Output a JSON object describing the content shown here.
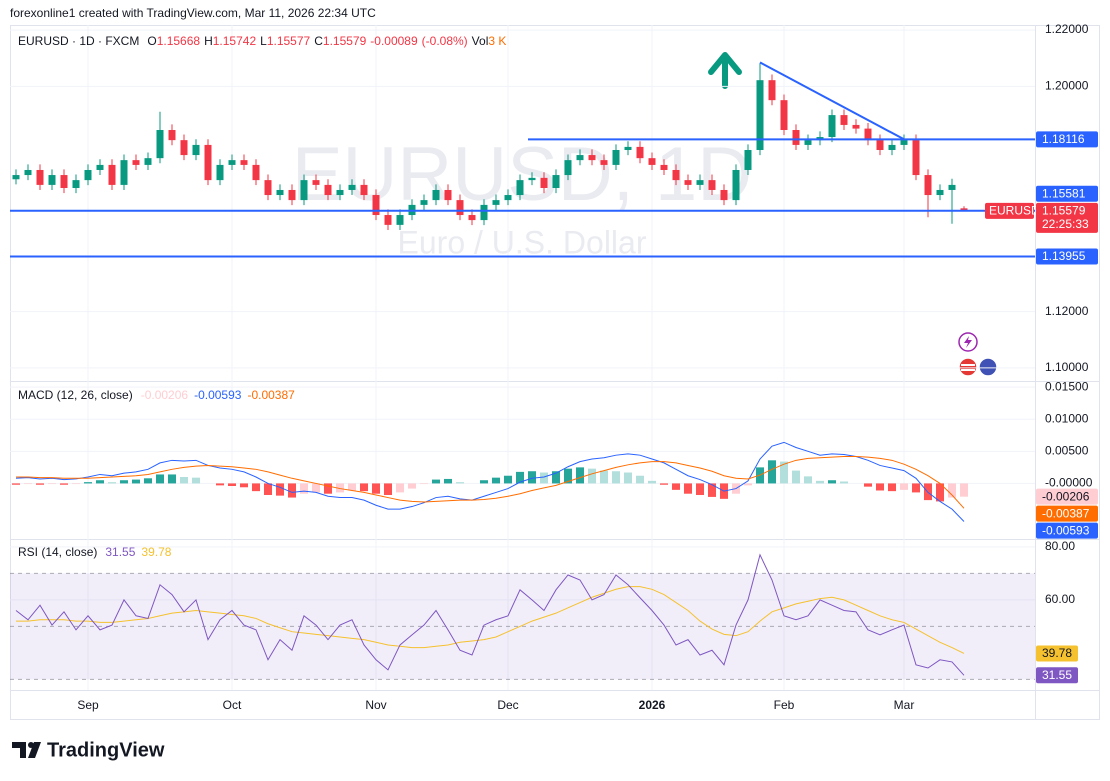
{
  "header": {
    "attribution": "forexonline1 created with TradingView.com, Mar 11, 2026 22:34 UTC"
  },
  "brand": "TradingView",
  "chart_data": [
    {
      "type": "candlestick",
      "symbol": "EURUSD · 1D · FXCM",
      "ohlc_letters": [
        "O",
        "H",
        "L",
        "C"
      ],
      "change": -0.00089,
      "change_label": "(-0.08%)",
      "volume_title": "Vol",
      "volume_label": "3 K",
      "watermark": "EURUSD, 1D",
      "watermark_sub": "Euro / U.S. Dollar",
      "symbol_badge": "EURUSD",
      "countdown": "22:25:33",
      "up_color": "#089981",
      "down_color": "#f23645",
      "hline_color": "#2962ff",
      "categories": [
        null,
        null,
        null,
        null,
        null,
        null,
        "Sep",
        null,
        null,
        null,
        null,
        null,
        null,
        null,
        null,
        null,
        null,
        null,
        "Oct",
        null,
        null,
        null,
        null,
        null,
        null,
        null,
        null,
        null,
        null,
        null,
        "Nov",
        null,
        null,
        null,
        null,
        null,
        null,
        null,
        null,
        null,
        null,
        "Dec",
        null,
        null,
        null,
        null,
        null,
        null,
        null,
        null,
        null,
        null,
        null,
        "2026",
        null,
        null,
        null,
        null,
        null,
        null,
        null,
        null,
        null,
        null,
        "Feb",
        null,
        null,
        null,
        null,
        null,
        null,
        null,
        null,
        null,
        "Mar",
        null,
        null,
        null,
        null,
        null
      ],
      "open": [
        1.167,
        1.1685,
        1.1703,
        1.165,
        1.1685,
        1.1639,
        1.1667,
        1.1703,
        1.1721,
        1.165,
        1.1738,
        1.1721,
        1.1745,
        1.1845,
        1.1809,
        1.1756,
        1.1792,
        1.1667,
        1.1721,
        1.1738,
        1.1721,
        1.1667,
        1.1614,
        1.1632,
        1.1596,
        1.1667,
        1.165,
        1.1614,
        1.1632,
        1.165,
        1.1614,
        1.1543,
        1.1508,
        1.1543,
        1.1579,
        1.1596,
        1.1632,
        1.1596,
        1.1543,
        1.1525,
        1.1579,
        1.1596,
        1.1614,
        1.1667,
        1.1675,
        1.1639,
        1.1685,
        1.1738,
        1.1756,
        1.1738,
        1.1721,
        1.1774,
        1.1785,
        1.1745,
        1.1721,
        1.1703,
        1.1667,
        1.165,
        1.1667,
        1.1632,
        1.1596,
        1.1703,
        1.1774,
        1.2022,
        1.1951,
        1.1845,
        1.1792,
        1.1809,
        1.182,
        1.1898,
        1.1863,
        1.185,
        1.1809,
        1.1774,
        1.1792,
        1.1809,
        1.1685,
        1.1614,
        1.1632,
        1.15668
      ],
      "high": [
        1.1705,
        1.1723,
        1.1723,
        1.1705,
        1.1705,
        1.1687,
        1.1723,
        1.1741,
        1.1741,
        1.1758,
        1.1758,
        1.1765,
        1.191,
        1.1865,
        1.1829,
        1.1812,
        1.1812,
        1.1741,
        1.1758,
        1.1758,
        1.1741,
        1.1687,
        1.1652,
        1.1652,
        1.1687,
        1.1687,
        1.167,
        1.1652,
        1.167,
        1.167,
        1.1634,
        1.1563,
        1.1563,
        1.1599,
        1.1616,
        1.1652,
        1.1652,
        1.1616,
        1.1563,
        1.1599,
        1.1616,
        1.1634,
        1.1687,
        1.1695,
        1.1695,
        1.1705,
        1.1758,
        1.1776,
        1.1776,
        1.1758,
        1.1794,
        1.1805,
        1.1805,
        1.1765,
        1.1741,
        1.1723,
        1.1687,
        1.1687,
        1.1687,
        1.1652,
        1.1723,
        1.1794,
        1.2082,
        1.2042,
        1.1971,
        1.1865,
        1.1829,
        1.184,
        1.1918,
        1.1918,
        1.1883,
        1.187,
        1.1829,
        1.1812,
        1.1829,
        1.1829,
        1.1705,
        1.1652,
        1.1672,
        1.15742
      ],
      "low": [
        1.1652,
        1.1667,
        1.1632,
        1.1632,
        1.1621,
        1.1621,
        1.1649,
        1.1685,
        1.1632,
        1.1632,
        1.1703,
        1.1703,
        1.1727,
        1.1791,
        1.1738,
        1.1738,
        1.1649,
        1.1649,
        1.1703,
        1.1703,
        1.1649,
        1.1596,
        1.1596,
        1.1578,
        1.1578,
        1.1632,
        1.1596,
        1.1596,
        1.1614,
        1.1596,
        1.1525,
        1.149,
        1.149,
        1.1525,
        1.1561,
        1.1578,
        1.1578,
        1.1525,
        1.1507,
        1.1507,
        1.1561,
        1.1578,
        1.1596,
        1.1649,
        1.1621,
        1.1621,
        1.1667,
        1.172,
        1.172,
        1.1703,
        1.1703,
        1.1756,
        1.1727,
        1.1703,
        1.1685,
        1.1649,
        1.1632,
        1.1632,
        1.1614,
        1.1578,
        1.1578,
        1.1685,
        1.1756,
        1.1933,
        1.1827,
        1.1774,
        1.1774,
        1.1791,
        1.1802,
        1.1845,
        1.1832,
        1.1791,
        1.1756,
        1.1756,
        1.1774,
        1.1667,
        1.1535,
        1.1596,
        1.1512,
        1.15577
      ],
      "close": [
        1.1685,
        1.1703,
        1.165,
        1.1685,
        1.1639,
        1.1667,
        1.1703,
        1.1721,
        1.165,
        1.1738,
        1.1721,
        1.1745,
        1.1845,
        1.1809,
        1.1756,
        1.1792,
        1.1667,
        1.1721,
        1.1738,
        1.1721,
        1.1667,
        1.1614,
        1.1632,
        1.1596,
        1.1667,
        1.165,
        1.1614,
        1.1632,
        1.165,
        1.1614,
        1.1543,
        1.1508,
        1.1543,
        1.1579,
        1.1596,
        1.1632,
        1.1596,
        1.1543,
        1.1525,
        1.1579,
        1.1596,
        1.1614,
        1.1667,
        1.1675,
        1.1639,
        1.1685,
        1.1738,
        1.1756,
        1.1738,
        1.1721,
        1.1774,
        1.1785,
        1.1745,
        1.1721,
        1.1703,
        1.1667,
        1.165,
        1.1667,
        1.1632,
        1.1596,
        1.1703,
        1.1774,
        1.2022,
        1.1951,
        1.1845,
        1.1792,
        1.1809,
        1.182,
        1.1898,
        1.1863,
        1.185,
        1.1809,
        1.1774,
        1.1792,
        1.1809,
        1.1685,
        1.1614,
        1.1632,
        1.165,
        1.15579
      ],
      "hlines": [
        1.18116,
        1.15581,
        1.13955
      ],
      "trendline": {
        "x": [
          62,
          74
        ],
        "y": [
          1.2085,
          1.1812
        ]
      },
      "ylim": [
        1.0957,
        1.2218
      ],
      "yticks": [
        {
          "value": 1.22,
          "label": "1.22000"
        },
        {
          "value": 1.2,
          "label": "1.20000"
        },
        {
          "value": 1.12,
          "label": "1.12000"
        },
        {
          "value": 1.1,
          "label": "1.10000"
        }
      ],
      "grid": true
    },
    {
      "type": "macd",
      "title": "MACD (12, 26, close)",
      "macd_color": "#2962ff",
      "signal_color": "#ff6d00",
      "hist_colors": [
        "#26a69a",
        "#b2dfdb",
        "#ff5252",
        "#ffcdd2"
      ],
      "histogram": [
        -0.0002,
        -0.0001,
        -0.0002,
        -0.0001,
        -0.0002,
        -0.0001,
        0.0002,
        0.0005,
        0.0002,
        0.0005,
        0.0006,
        0.0008,
        0.0014,
        0.0014,
        0.001,
        0.0009,
        0,
        -0.0003,
        -0.0004,
        -0.0006,
        -0.0012,
        -0.0018,
        -0.0019,
        -0.0022,
        -0.0016,
        -0.0014,
        -0.0016,
        -0.0014,
        -0.0011,
        -0.0012,
        -0.0016,
        -0.0018,
        -0.0014,
        -0.0008,
        -0.0001,
        0.0006,
        0.0007,
        0.0002,
        0,
        0.0005,
        0.0009,
        0.0012,
        0.0018,
        0.0019,
        0.0017,
        0.0019,
        0.0023,
        0.0025,
        0.0023,
        0.002,
        0.0019,
        0.0017,
        0.0012,
        0.0004,
        -0.0002,
        -0.001,
        -0.0016,
        -0.0018,
        -0.0021,
        -0.0024,
        -0.0016,
        -0.0003,
        0.0025,
        0.0036,
        0.0034,
        0.002,
        0.0011,
        0.0004,
        0.0005,
        0.0003,
        0,
        -0.0005,
        -0.0011,
        -0.0012,
        -0.001,
        -0.0014,
        -0.0026,
        -0.0028,
        -0.0022,
        -0.00206
      ],
      "macd": [
        0.0008,
        0.0009,
        0.0007,
        0.0008,
        0.0006,
        0.0007,
        0.001,
        0.0014,
        0.0012,
        0.0016,
        0.0018,
        0.0022,
        0.0032,
        0.0036,
        0.0035,
        0.0036,
        0.0028,
        0.0024,
        0.0022,
        0.0018,
        0.001,
        0,
        -0.0006,
        -0.0014,
        -0.0012,
        -0.0014,
        -0.002,
        -0.0022,
        -0.0022,
        -0.0026,
        -0.0034,
        -0.004,
        -0.004,
        -0.0036,
        -0.003,
        -0.0022,
        -0.002,
        -0.0024,
        -0.0026,
        -0.002,
        -0.0014,
        -0.0008,
        0.0002,
        0.0008,
        0.001,
        0.0016,
        0.0026,
        0.0034,
        0.0038,
        0.004,
        0.0044,
        0.0046,
        0.0044,
        0.0038,
        0.0032,
        0.0022,
        0.0012,
        0.0006,
        -0.0002,
        -0.0012,
        -0.0008,
        0.0004,
        0.0038,
        0.0058,
        0.0064,
        0.0056,
        0.005,
        0.0044,
        0.0046,
        0.0045,
        0.0042,
        0.0036,
        0.0028,
        0.0024,
        0.002,
        0.0008,
        -0.0014,
        -0.0028,
        -0.004,
        -0.00593
      ],
      "signal": [
        0.001,
        0.001,
        0.0009,
        0.0009,
        0.0008,
        0.0008,
        0.0008,
        0.0009,
        0.001,
        0.0011,
        0.0012,
        0.0014,
        0.0018,
        0.0022,
        0.0025,
        0.0027,
        0.0028,
        0.0027,
        0.0026,
        0.0024,
        0.0022,
        0.0018,
        0.0013,
        0.0008,
        0.0004,
        0,
        -0.0004,
        -0.0008,
        -0.0011,
        -0.0014,
        -0.0018,
        -0.0022,
        -0.0026,
        -0.0028,
        -0.0029,
        -0.0028,
        -0.0027,
        -0.0026,
        -0.0026,
        -0.0025,
        -0.0023,
        -0.002,
        -0.0016,
        -0.0011,
        -0.0007,
        -0.0003,
        0.0003,
        0.0009,
        0.0015,
        0.002,
        0.0025,
        0.0029,
        0.0032,
        0.0034,
        0.0034,
        0.0032,
        0.0028,
        0.0024,
        0.0019,
        0.0012,
        0.0008,
        0.0007,
        0.0013,
        0.0022,
        0.003,
        0.0036,
        0.0039,
        0.004,
        0.0041,
        0.0042,
        0.0042,
        0.0041,
        0.0039,
        0.0036,
        0.003,
        0.0022,
        0.0012,
        0,
        -0.0018,
        -0.00387
      ],
      "ylim": [
        -0.0085,
        0.0158
      ],
      "yticks": [
        {
          "value": 0.015,
          "label": "0.01500"
        },
        {
          "value": 0.01,
          "label": "0.01000"
        },
        {
          "value": 0.005,
          "label": "0.00500"
        },
        {
          "value": 0,
          "label": "-0.00000"
        }
      ],
      "grid": true
    },
    {
      "type": "rsi",
      "title": "RSI (14, close)",
      "rsi_color": "#7e57c2",
      "ma_color": "#f5c12e",
      "rsi": [
        56,
        52.5,
        58,
        50.5,
        55.5,
        48.7,
        54,
        48.7,
        50.5,
        60,
        54,
        53,
        65.7,
        62,
        55.5,
        60,
        45,
        52.5,
        56,
        50.5,
        48.7,
        37.4,
        45,
        41,
        54,
        50.5,
        45,
        50.5,
        52.5,
        43,
        37.4,
        33.6,
        43,
        46.8,
        50.5,
        56,
        48.7,
        41,
        39.2,
        50.5,
        52.5,
        54,
        63.8,
        60,
        56,
        63.8,
        69.4,
        67.5,
        60,
        62,
        69.4,
        65.7,
        60.8,
        56,
        50.5,
        43,
        45,
        39.2,
        41,
        35.5,
        50.5,
        60,
        77,
        67.5,
        54,
        52.5,
        54,
        60,
        58,
        56,
        55.5,
        48.7,
        46.8,
        48.7,
        50.5,
        35.5,
        34.3,
        37.4,
        36.6,
        31.55
      ],
      "rsi_ma": [
        52,
        52,
        52.5,
        52.5,
        52.5,
        52,
        52,
        51.5,
        51.5,
        52,
        52.5,
        53,
        54,
        55,
        55.5,
        56,
        55.5,
        55,
        54.5,
        54,
        53,
        51,
        49.5,
        48,
        47.5,
        47,
        46.5,
        46,
        45.5,
        45,
        44,
        43,
        42.5,
        42,
        42,
        42.5,
        43,
        44,
        44.5,
        45,
        46,
        48,
        50,
        52,
        53.5,
        55,
        57,
        59,
        61,
        62.5,
        64,
        65,
        65,
        64,
        62,
        59,
        56,
        52,
        49,
        47,
        46.5,
        48,
        52,
        55.5,
        57,
        58.5,
        59.5,
        60.5,
        61,
        60,
        58,
        56,
        54,
        52.5,
        51.5,
        49,
        46.5,
        44,
        42,
        39.78
      ],
      "band": [
        30,
        70
      ],
      "levels": [
        70,
        50,
        30
      ],
      "ylim": [
        26,
        82.6
      ],
      "yticks": [
        {
          "value": 80,
          "label": "80.00"
        },
        {
          "value": 60,
          "label": "60.00"
        }
      ],
      "grid": true
    }
  ]
}
